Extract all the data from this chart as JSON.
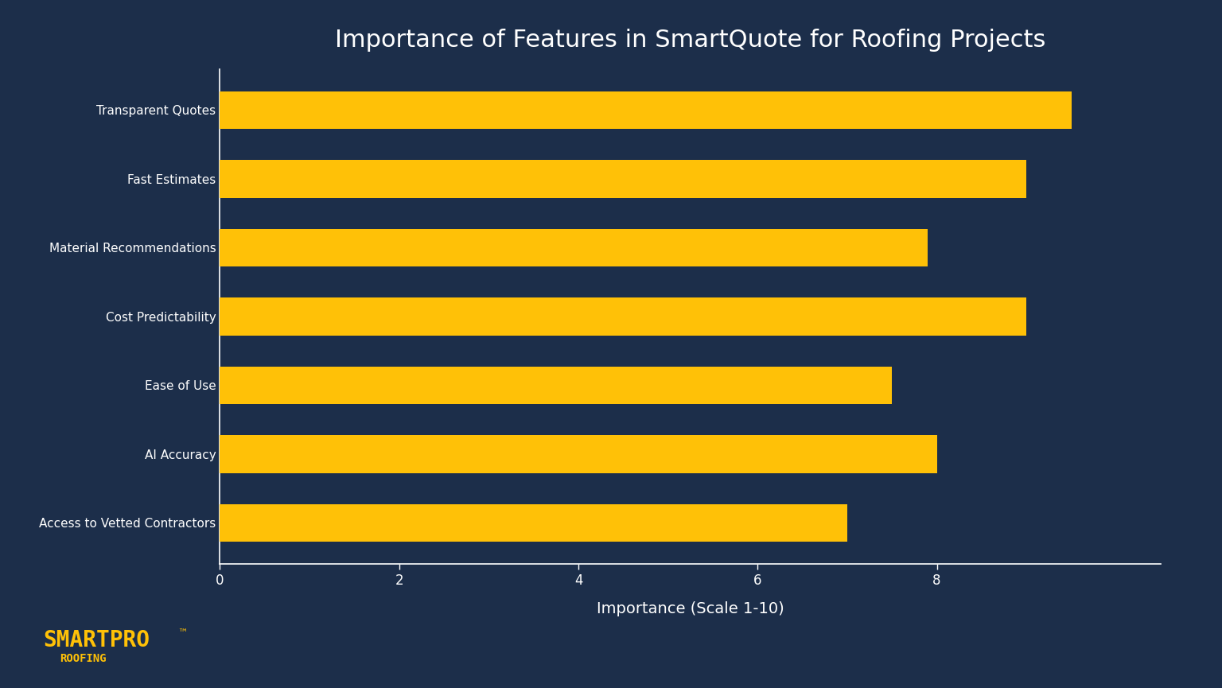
{
  "title": "Importance of Features in SmartQuote for Roofing Projects",
  "categories": [
    "Transparent Quotes",
    "Fast Estimates",
    "Material Recommendations",
    "Cost Predictability",
    "Ease of Use",
    "AI Accuracy",
    "Access to Vetted Contractors"
  ],
  "values": [
    9.5,
    9.0,
    7.9,
    9.0,
    7.5,
    8.0,
    7.0
  ],
  "bar_color": "#FFC107",
  "background_color": "#1C2E4A",
  "text_color": "#FFFFFF",
  "xlabel": "Importance (Scale 1-10)",
  "xlim": [
    0,
    10.5
  ],
  "xticks": [
    0,
    2,
    4,
    6,
    8
  ],
  "title_fontsize": 22,
  "label_fontsize": 11,
  "tick_fontsize": 12,
  "xlabel_fontsize": 14,
  "logo_text_main": "SMARTPRO",
  "logo_text_sub": "ROOFING",
  "logo_color": "#FFC107",
  "axis_line_color": "#FFFFFF",
  "bar_height": 0.55
}
